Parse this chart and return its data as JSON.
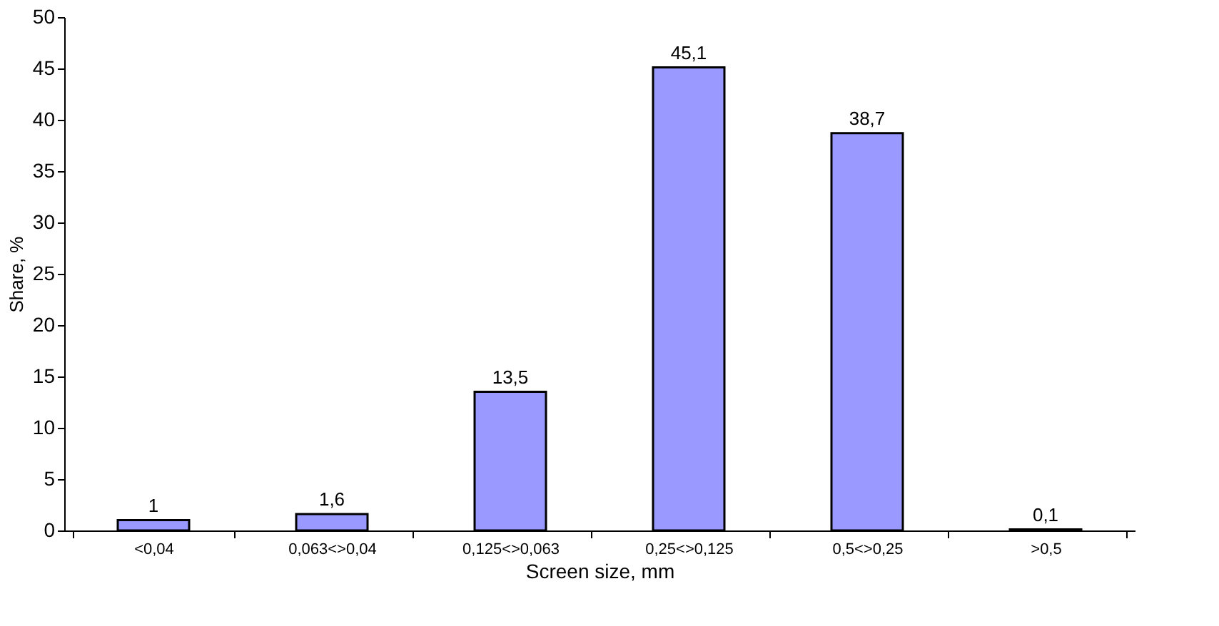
{
  "chart_data": {
    "type": "bar",
    "xlabel": "Screen size, mm",
    "ylabel": "Share, %",
    "categories": [
      "<0,04",
      "0,063<>0,04",
      "0,125<>0,063",
      "0,25<>0,125",
      "0,5<>0,25",
      ">0,5"
    ],
    "values": [
      1,
      1.6,
      13.5,
      45.1,
      38.7,
      0.1
    ],
    "value_labels": [
      "1",
      "1,6",
      "13,5",
      "45,1",
      "38,7",
      "0,1"
    ],
    "color": "#9999ff",
    "ylim": [
      0,
      50
    ],
    "yticks": [
      0,
      5,
      10,
      15,
      20,
      25,
      30,
      35,
      40,
      45,
      50
    ],
    "grid": false
  }
}
